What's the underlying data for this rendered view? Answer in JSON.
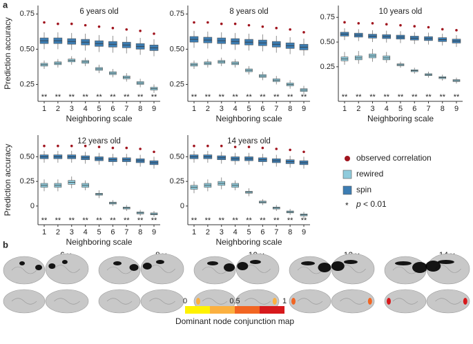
{
  "panel_labels": [
    "a",
    "b"
  ],
  "chart_data": [
    {
      "type": "box",
      "title": "6 years old",
      "x_label": "Neighboring scale",
      "y_label": "Prediction accuracy",
      "categories": [
        1,
        2,
        3,
        4,
        5,
        6,
        7,
        8,
        9
      ],
      "ylim": [
        0.13,
        0.81
      ],
      "yticks": [
        0.25,
        {
          "value": 0.5,
          "label": "0.50"
        },
        0.75
      ],
      "series": [
        {
          "kind": "point",
          "color": "#a0141e",
          "values": [
            0.69,
            0.68,
            0.68,
            0.67,
            0.66,
            0.65,
            0.64,
            0.63,
            0.61
          ]
        },
        {
          "kind": "box",
          "color": "#8fcbdc",
          "median": [
            0.39,
            0.4,
            0.42,
            0.41,
            0.36,
            0.33,
            0.3,
            0.26,
            0.22
          ],
          "q1": [
            0.38,
            0.39,
            0.41,
            0.4,
            0.35,
            0.32,
            0.29,
            0.25,
            0.21
          ],
          "q3": [
            0.4,
            0.41,
            0.43,
            0.42,
            0.37,
            0.34,
            0.31,
            0.27,
            0.23
          ],
          "whisker_low": [
            0.36,
            0.37,
            0.39,
            0.38,
            0.33,
            0.3,
            0.27,
            0.23,
            0.19
          ],
          "whisker_high": [
            0.42,
            0.43,
            0.45,
            0.44,
            0.39,
            0.36,
            0.33,
            0.29,
            0.25
          ]
        },
        {
          "kind": "box",
          "color": "#3c7db3",
          "median": [
            0.56,
            0.56,
            0.555,
            0.55,
            0.54,
            0.535,
            0.53,
            0.52,
            0.51
          ],
          "q1": [
            0.54,
            0.54,
            0.535,
            0.53,
            0.52,
            0.515,
            0.51,
            0.5,
            0.49
          ],
          "q3": [
            0.58,
            0.58,
            0.575,
            0.57,
            0.56,
            0.555,
            0.55,
            0.54,
            0.53
          ],
          "whisker_low": [
            0.5,
            0.5,
            0.495,
            0.49,
            0.48,
            0.475,
            0.47,
            0.46,
            0.45
          ],
          "whisker_high": [
            0.62,
            0.62,
            0.615,
            0.61,
            0.6,
            0.595,
            0.59,
            0.58,
            0.57
          ]
        }
      ],
      "significance": [
        "**",
        "**",
        "**",
        "**",
        "**",
        "**",
        "**",
        "**",
        "**"
      ]
    },
    {
      "type": "box",
      "title": "8 years old",
      "x_label": "Neighboring scale",
      "categories": [
        1,
        2,
        3,
        4,
        5,
        6,
        7,
        8,
        9
      ],
      "ylim": [
        0.13,
        0.81
      ],
      "yticks": [
        0.25,
        {
          "value": 0.5,
          "label": "0.50"
        },
        0.75
      ],
      "series": [
        {
          "kind": "point",
          "color": "#a0141e",
          "values": [
            0.69,
            0.69,
            0.68,
            0.68,
            0.67,
            0.66,
            0.65,
            0.64,
            0.62
          ]
        },
        {
          "kind": "box",
          "color": "#8fcbdc",
          "median": [
            0.39,
            0.4,
            0.41,
            0.4,
            0.35,
            0.31,
            0.28,
            0.25,
            0.21
          ],
          "q1": [
            0.38,
            0.39,
            0.4,
            0.39,
            0.34,
            0.3,
            0.27,
            0.24,
            0.2
          ],
          "q3": [
            0.4,
            0.41,
            0.42,
            0.41,
            0.36,
            0.32,
            0.29,
            0.26,
            0.22
          ],
          "whisker_low": [
            0.36,
            0.37,
            0.38,
            0.37,
            0.32,
            0.28,
            0.25,
            0.22,
            0.18
          ],
          "whisker_high": [
            0.42,
            0.43,
            0.44,
            0.43,
            0.38,
            0.34,
            0.31,
            0.28,
            0.24
          ]
        },
        {
          "kind": "box",
          "color": "#3c7db3",
          "median": [
            0.57,
            0.565,
            0.56,
            0.555,
            0.55,
            0.545,
            0.535,
            0.525,
            0.515
          ],
          "q1": [
            0.55,
            0.545,
            0.54,
            0.535,
            0.53,
            0.525,
            0.515,
            0.505,
            0.495
          ],
          "q3": [
            0.59,
            0.585,
            0.58,
            0.575,
            0.57,
            0.565,
            0.555,
            0.545,
            0.535
          ],
          "whisker_low": [
            0.51,
            0.505,
            0.5,
            0.495,
            0.49,
            0.485,
            0.475,
            0.465,
            0.455
          ],
          "whisker_high": [
            0.63,
            0.625,
            0.62,
            0.615,
            0.61,
            0.605,
            0.595,
            0.585,
            0.575
          ]
        }
      ],
      "significance": [
        "**",
        "**",
        "**",
        "**",
        "**",
        "**",
        "**",
        "**",
        "**"
      ]
    },
    {
      "type": "box",
      "title": "10 years old",
      "x_label": "Neighboring scale",
      "categories": [
        1,
        2,
        3,
        4,
        5,
        6,
        7,
        8,
        9
      ],
      "ylim": [
        -0.1,
        0.87
      ],
      "yticks": [
        0.25,
        {
          "value": 0.5,
          "label": "0.50"
        },
        0.75
      ],
      "series": [
        {
          "kind": "point",
          "color": "#a0141e",
          "values": [
            0.7,
            0.69,
            0.69,
            0.68,
            0.67,
            0.66,
            0.65,
            0.63,
            0.62
          ]
        },
        {
          "kind": "box",
          "color": "#8fcbdc",
          "median": [
            0.33,
            0.34,
            0.36,
            0.34,
            0.27,
            0.21,
            0.17,
            0.14,
            0.11
          ],
          "q1": [
            0.31,
            0.32,
            0.34,
            0.32,
            0.26,
            0.2,
            0.16,
            0.13,
            0.1
          ],
          "q3": [
            0.35,
            0.36,
            0.38,
            0.36,
            0.28,
            0.22,
            0.18,
            0.15,
            0.12
          ],
          "whisker_low": [
            0.27,
            0.28,
            0.3,
            0.29,
            0.24,
            0.18,
            0.14,
            0.11,
            0.08
          ],
          "whisker_high": [
            0.4,
            0.41,
            0.43,
            0.4,
            0.3,
            0.24,
            0.2,
            0.17,
            0.14
          ]
        },
        {
          "kind": "box",
          "color": "#3c7db3",
          "median": [
            0.58,
            0.57,
            0.56,
            0.555,
            0.55,
            0.54,
            0.535,
            0.525,
            0.51
          ],
          "q1": [
            0.56,
            0.55,
            0.54,
            0.535,
            0.53,
            0.52,
            0.515,
            0.505,
            0.49
          ],
          "q3": [
            0.6,
            0.59,
            0.58,
            0.575,
            0.57,
            0.56,
            0.555,
            0.545,
            0.53
          ],
          "whisker_low": [
            0.52,
            0.51,
            0.5,
            0.495,
            0.49,
            0.48,
            0.475,
            0.465,
            0.45
          ],
          "whisker_high": [
            0.64,
            0.63,
            0.62,
            0.615,
            0.61,
            0.6,
            0.595,
            0.585,
            0.57
          ]
        }
      ],
      "significance": [
        "**",
        "**",
        "**",
        "**",
        "**",
        "**",
        "**",
        "**",
        "**"
      ]
    },
    {
      "type": "box",
      "title": "12 years old",
      "x_label": "Neighboring scale",
      "y_label": "Prediction accuracy",
      "categories": [
        1,
        2,
        3,
        4,
        5,
        6,
        7,
        8,
        9
      ],
      "ylim": [
        -0.19,
        0.72
      ],
      "yticks": [
        0,
        0.25,
        {
          "value": 0.5,
          "label": "0.50"
        }
      ],
      "series": [
        {
          "kind": "point",
          "color": "#a0141e",
          "values": [
            0.61,
            0.61,
            0.61,
            0.61,
            0.6,
            0.59,
            0.59,
            0.58,
            0.55
          ]
        },
        {
          "kind": "box",
          "color": "#8fcbdc",
          "median": [
            0.21,
            0.21,
            0.24,
            0.21,
            0.12,
            0.03,
            -0.02,
            -0.07,
            -0.08
          ],
          "q1": [
            0.19,
            0.19,
            0.22,
            0.19,
            0.11,
            0.02,
            -0.03,
            -0.08,
            -0.09
          ],
          "q3": [
            0.23,
            0.23,
            0.26,
            0.23,
            0.13,
            0.04,
            -0.01,
            -0.06,
            -0.07
          ],
          "whisker_low": [
            0.15,
            0.15,
            0.18,
            0.16,
            0.08,
            0,
            -0.05,
            -0.1,
            -0.11
          ],
          "whisker_high": [
            0.27,
            0.27,
            0.3,
            0.26,
            0.16,
            0.06,
            0.01,
            -0.04,
            -0.05
          ]
        },
        {
          "kind": "box",
          "color": "#3c7db3",
          "median": [
            0.5,
            0.5,
            0.5,
            0.49,
            0.48,
            0.47,
            0.47,
            0.46,
            0.44
          ],
          "q1": [
            0.48,
            0.48,
            0.48,
            0.47,
            0.46,
            0.45,
            0.45,
            0.44,
            0.42
          ],
          "q3": [
            0.52,
            0.52,
            0.52,
            0.51,
            0.5,
            0.49,
            0.49,
            0.48,
            0.46
          ],
          "whisker_low": [
            0.44,
            0.44,
            0.44,
            0.43,
            0.42,
            0.41,
            0.41,
            0.4,
            0.38
          ],
          "whisker_high": [
            0.56,
            0.56,
            0.56,
            0.55,
            0.54,
            0.53,
            0.53,
            0.52,
            0.5
          ]
        }
      ],
      "significance": [
        "**",
        "**",
        "**",
        "**",
        "**",
        "**",
        "**",
        "**",
        "**"
      ]
    },
    {
      "type": "box",
      "title": "14 years old",
      "x_label": "Neighboring scale",
      "categories": [
        1,
        2,
        3,
        4,
        5,
        6,
        7,
        8,
        9
      ],
      "ylim": [
        -0.19,
        0.72
      ],
      "yticks": [
        0,
        0.25,
        {
          "value": 0.5,
          "label": "0.50"
        }
      ],
      "series": [
        {
          "kind": "point",
          "color": "#a0141e",
          "values": [
            0.61,
            0.61,
            0.61,
            0.6,
            0.6,
            0.59,
            0.58,
            0.57,
            0.55
          ]
        },
        {
          "kind": "box",
          "color": "#8fcbdc",
          "median": [
            0.19,
            0.21,
            0.23,
            0.21,
            0.14,
            0.04,
            -0.02,
            -0.06,
            -0.09
          ],
          "q1": [
            0.17,
            0.19,
            0.21,
            0.19,
            0.13,
            0.03,
            -0.03,
            -0.07,
            -0.1
          ],
          "q3": [
            0.21,
            0.23,
            0.25,
            0.23,
            0.15,
            0.05,
            -0.01,
            -0.05,
            -0.08
          ],
          "whisker_low": [
            0.13,
            0.15,
            0.17,
            0.16,
            0.1,
            0.01,
            -0.05,
            -0.09,
            -0.12
          ],
          "whisker_high": [
            0.25,
            0.27,
            0.29,
            0.26,
            0.18,
            0.07,
            0.01,
            -0.03,
            -0.06
          ]
        },
        {
          "kind": "box",
          "color": "#3c7db3",
          "median": [
            0.5,
            0.5,
            0.49,
            0.48,
            0.48,
            0.47,
            0.46,
            0.45,
            0.44
          ],
          "q1": [
            0.48,
            0.48,
            0.47,
            0.46,
            0.46,
            0.45,
            0.44,
            0.43,
            0.42
          ],
          "q3": [
            0.52,
            0.52,
            0.51,
            0.5,
            0.5,
            0.49,
            0.48,
            0.47,
            0.46
          ],
          "whisker_low": [
            0.44,
            0.44,
            0.43,
            0.42,
            0.42,
            0.41,
            0.4,
            0.39,
            0.38
          ],
          "whisker_high": [
            0.56,
            0.56,
            0.55,
            0.54,
            0.54,
            0.53,
            0.52,
            0.51,
            0.5
          ]
        }
      ],
      "significance": [
        "**",
        "**",
        "**",
        "**",
        "**",
        "**",
        "**",
        "**",
        "**"
      ]
    }
  ],
  "legend": {
    "items": [
      {
        "name": "observed correlation",
        "color": "#a0141e",
        "marker": "circle"
      },
      {
        "name": "rewired",
        "color": "#8fcbdc",
        "marker": "square"
      },
      {
        "name": "spin",
        "color": "#3c7db3",
        "marker": "square"
      }
    ],
    "note": {
      "symbol": "*",
      "var": "p",
      "text": "< 0.01"
    }
  },
  "brain_maps": {
    "ages": [
      "6 y",
      "8 y",
      "10 y",
      "12 y",
      "14 y"
    ],
    "colorbar": {
      "title": "Dominant node conjunction map",
      "ticks": [
        0,
        0.5,
        1
      ],
      "colors": [
        "#fff200",
        "#fbb040",
        "#f26522",
        "#d7191c"
      ]
    }
  }
}
